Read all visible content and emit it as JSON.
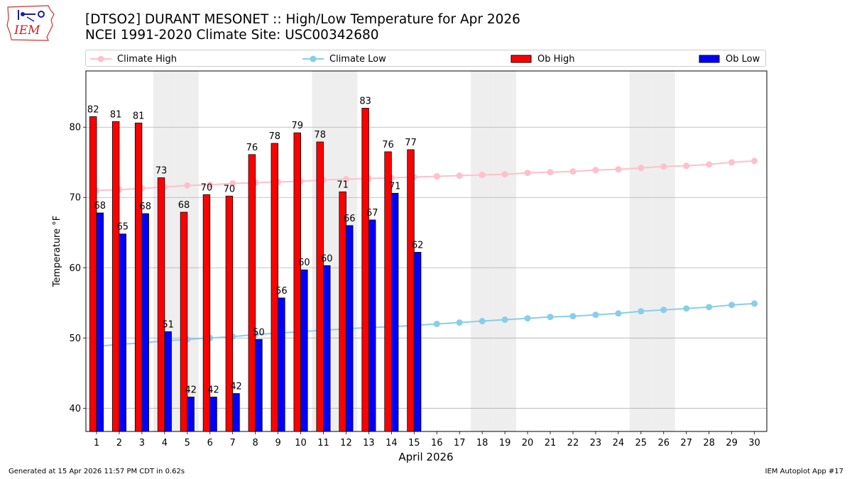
{
  "header": {
    "logo_text": "IEM",
    "title_line1": "[DTSO2] DURANT MESONET :: High/Low Temperature for Apr 2026",
    "title_line2": "NCEI 1991-2020 Climate Site: USC00342680"
  },
  "legend": [
    {
      "label": "Climate High",
      "kind": "line",
      "color": "#ffc0cb"
    },
    {
      "label": "Climate Low",
      "kind": "line",
      "color": "#87ceeb"
    },
    {
      "label": "Ob High",
      "kind": "bar",
      "color": "#ff0000"
    },
    {
      "label": "Ob Low",
      "kind": "bar",
      "color": "#0000ff"
    }
  ],
  "footer": {
    "left": "Generated at 15 Apr 2026 11:57 PM CDT in 0.62s",
    "right": "IEM Autoplot App #17"
  },
  "chart_data": {
    "type": "bar",
    "title": "[DTSO2] DURANT MESONET :: High/Low Temperature for Apr 2026",
    "subtitle": "NCEI 1991-2020 Climate Site: USC00342680",
    "xlabel": "April 2026",
    "ylabel": "Temperature °F",
    "ylim": [
      36.7,
      88
    ],
    "yticks": [
      40,
      50,
      60,
      70,
      80
    ],
    "grid": "horizontal",
    "legend_position": "top",
    "weekend_shaded_days": [
      4,
      5,
      11,
      12,
      18,
      19,
      25,
      26
    ],
    "categories": [
      1,
      2,
      3,
      4,
      5,
      6,
      7,
      8,
      9,
      10,
      11,
      12,
      13,
      14,
      15,
      16,
      17,
      18,
      19,
      20,
      21,
      22,
      23,
      24,
      25,
      26,
      27,
      28,
      29,
      30
    ],
    "ob_high": [
      81.5,
      80.8,
      80.6,
      72.8,
      67.9,
      70.4,
      70.2,
      76.1,
      77.7,
      79.2,
      77.9,
      70.8,
      82.7,
      76.5,
      76.8
    ],
    "ob_high_labels": [
      "82",
      "81",
      "81",
      "73",
      "68",
      "70",
      "70",
      "76",
      "78",
      "79",
      "78",
      "71",
      "83",
      "76",
      "77"
    ],
    "ob_low": [
      67.8,
      64.8,
      67.7,
      50.9,
      41.6,
      41.6,
      42.1,
      49.8,
      55.7,
      59.7,
      60.3,
      66.0,
      66.8,
      70.6,
      62.2
    ],
    "ob_low_labels": [
      "68",
      "65",
      "68",
      "51",
      "42",
      "42",
      "42",
      "50",
      "56",
      "60",
      "60",
      "66",
      "67",
      "71",
      "62"
    ],
    "climate_high": [
      71.0,
      71.1,
      71.3,
      71.5,
      71.7,
      71.8,
      72.0,
      72.1,
      72.2,
      72.3,
      72.5,
      72.6,
      72.7,
      72.8,
      72.9,
      73.0,
      73.1,
      73.2,
      73.3,
      73.5,
      73.6,
      73.7,
      73.9,
      74.0,
      74.2,
      74.4,
      74.5,
      74.7,
      75.0,
      75.2
    ],
    "climate_low": [
      48.8,
      49.1,
      49.3,
      49.6,
      49.8,
      50.0,
      50.2,
      50.5,
      50.7,
      50.9,
      51.1,
      51.3,
      51.5,
      51.6,
      51.8,
      52.0,
      52.2,
      52.4,
      52.6,
      52.8,
      53.0,
      53.1,
      53.3,
      53.5,
      53.8,
      54.0,
      54.2,
      54.4,
      54.7,
      54.9
    ],
    "series": [
      {
        "name": "Climate High",
        "color": "#ffc0cb"
      },
      {
        "name": "Climate Low",
        "color": "#87ceeb"
      },
      {
        "name": "Ob High",
        "color": "#ff0000"
      },
      {
        "name": "Ob Low",
        "color": "#0000ff"
      }
    ]
  }
}
